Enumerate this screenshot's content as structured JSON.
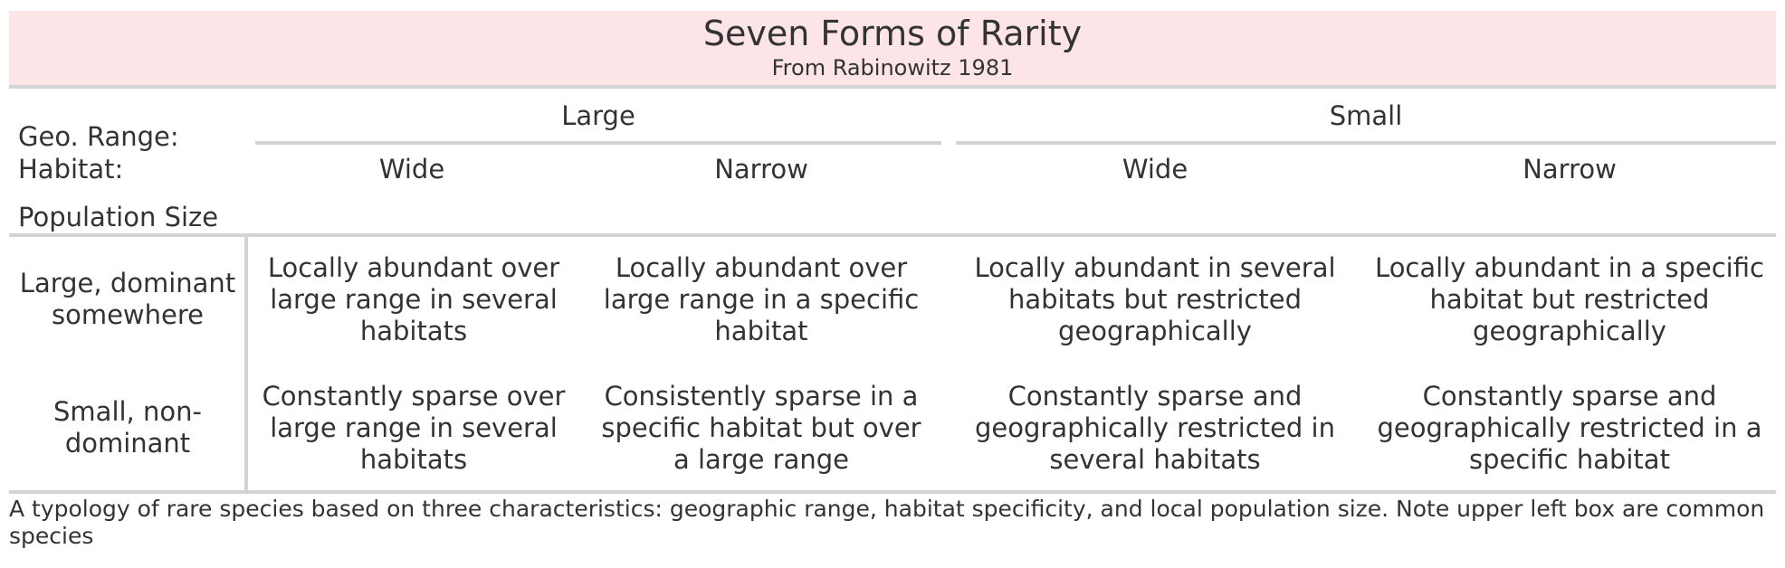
{
  "table": {
    "title": "Seven Forms of Rarity",
    "subtitle": "From Rabinowitz 1981",
    "stub_labels": {
      "geo_range": "Geo. Range:",
      "habitat": "Habitat:",
      "population_size": "Population Size"
    },
    "geo_range_headers": [
      "Large",
      "Small"
    ],
    "habitat_headers": [
      "Wide",
      "Narrow",
      "Wide",
      "Narrow"
    ],
    "rows": [
      {
        "label": "Large, dominant somewhere",
        "cells": [
          "Locally abundant over large range in several habitats",
          "Locally abundant over large range in a specific habitat",
          "Locally abundant in several habitats but restricted geographically",
          "Locally abundant in a specific habitat but restricted geographically"
        ]
      },
      {
        "label": "Small, non-dominant",
        "cells": [
          "Constantly sparse over large range in several habitats",
          "Consistently sparse in a specific habitat but over a large range",
          "Constantly sparse and geographically restricted in several habitats",
          "Constantly sparse and geographically restricted in a specific habitat"
        ]
      }
    ],
    "footnote": "A typology of rare species based on three characteristics: geographic range, habitat specificity, and local population size. Note upper left box are common species"
  }
}
